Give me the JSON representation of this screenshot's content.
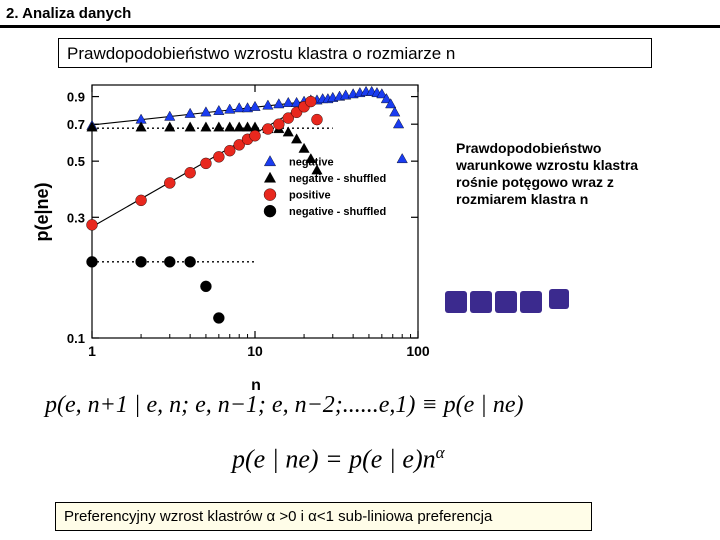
{
  "header": {
    "title": "2. Analiza danych"
  },
  "subtitle": "Prawdopodobieństwo wzrostu klastra o rozmiarze n",
  "description_lines": [
    "Prawdopodobieństwo",
    "warunkowe  wzrostu klastra",
    "rośnie potęgowo wraz z",
    "rozmiarem klastra n"
  ],
  "equation1": "p(e, n+1 | e, n; e, n−1; e, n−2;......e,1) ≡ p(e | ne)",
  "equation2_main": "p(e | ne) = p(e | e)n",
  "equation2_exp": "α",
  "bottom_note": "Preferencyjny wzrost klastrów  α >0 i α<1 sub-liniowa preferencja",
  "colors": {
    "blue": "#1a3cf0",
    "black": "#000000",
    "red": "#e8281e",
    "squares": "#3b2a8e"
  },
  "chart_data": {
    "type": "scatter",
    "xlabel": "n",
    "ylabel": "p(e|ne)",
    "x_scale": "log",
    "y_scale": "log",
    "xlim": [
      1,
      100
    ],
    "ylim": [
      0.1,
      1.0
    ],
    "x_ticks": [
      1,
      10,
      100
    ],
    "x_tick_labels": [
      "1",
      "10",
      "100"
    ],
    "y_ticks": [
      0.1,
      0.3,
      0.5,
      0.7,
      0.9
    ],
    "y_tick_labels": [
      "0.1",
      "0.3",
      "0.5",
      "0.7",
      "0.9"
    ],
    "legend_position": "bottom-right",
    "series": [
      {
        "name": "negative",
        "marker": "triangle",
        "color": "#1a3cf0",
        "x": [
          1,
          2,
          3,
          4,
          5,
          6,
          7,
          8,
          9,
          10,
          12,
          14,
          16,
          18,
          20,
          22,
          24,
          26,
          28,
          30,
          33,
          36,
          40,
          44,
          48,
          52,
          56,
          60,
          64,
          68,
          72,
          76,
          80
        ],
        "y": [
          0.69,
          0.73,
          0.75,
          0.77,
          0.78,
          0.79,
          0.8,
          0.81,
          0.81,
          0.82,
          0.83,
          0.84,
          0.85,
          0.85,
          0.86,
          0.87,
          0.87,
          0.88,
          0.88,
          0.89,
          0.9,
          0.91,
          0.92,
          0.93,
          0.94,
          0.94,
          0.93,
          0.92,
          0.88,
          0.84,
          0.78,
          0.7,
          0.51
        ]
      },
      {
        "name": "negative - shuffled",
        "marker": "triangle",
        "color": "#000000",
        "x": [
          1,
          2,
          3,
          4,
          5,
          6,
          7,
          8,
          9,
          10,
          12,
          14,
          16,
          18,
          20,
          22,
          24
        ],
        "y": [
          0.68,
          0.68,
          0.68,
          0.68,
          0.68,
          0.68,
          0.68,
          0.68,
          0.68,
          0.68,
          0.67,
          0.67,
          0.65,
          0.61,
          0.56,
          0.51,
          0.46
        ]
      },
      {
        "name": "positive",
        "marker": "circle",
        "color": "#e8281e",
        "x": [
          1,
          2,
          3,
          4,
          5,
          6,
          7,
          8,
          9,
          10,
          12,
          14,
          16,
          18,
          20,
          22,
          24
        ],
        "y": [
          0.28,
          0.35,
          0.41,
          0.45,
          0.49,
          0.52,
          0.55,
          0.58,
          0.61,
          0.63,
          0.67,
          0.7,
          0.74,
          0.78,
          0.82,
          0.86,
          0.73
        ]
      },
      {
        "name": "negative - shuffled",
        "marker": "circle",
        "color": "#000000",
        "x": [
          1,
          2,
          3,
          4,
          5,
          6
        ],
        "y": [
          0.2,
          0.2,
          0.2,
          0.2,
          0.16,
          0.12
        ]
      }
    ]
  }
}
